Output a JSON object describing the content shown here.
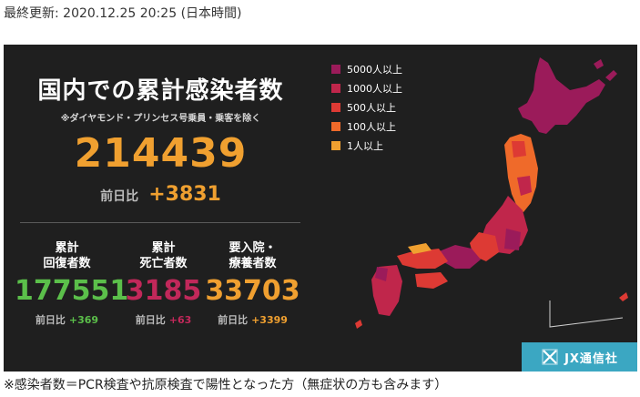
{
  "updated": "最終更新: 2020.12.25 20:25 (日本時間)",
  "title": "国内での累計感染者数",
  "note": "※ダイヤモンド・プリンセス号乗員・乗客を除く",
  "total": "214439",
  "prev_label": "前日比",
  "total_prev": "+3831",
  "stats": [
    {
      "label1": "累計",
      "label2": "回復者数",
      "value": "177551",
      "prev": "+369",
      "color": "#5bbf4a"
    },
    {
      "label1": "累計",
      "label2": "死亡者数",
      "value": "3185",
      "prev": "+63",
      "color": "#c1285a"
    },
    {
      "label1": "要入院・",
      "label2": "療養者数",
      "value": "33703",
      "prev": "+3399",
      "color": "#f0a030"
    }
  ],
  "legend": [
    {
      "label": "5000人以上",
      "color": "#9b1b5a"
    },
    {
      "label": "1000人以上",
      "color": "#c0264b"
    },
    {
      "label": "500人以上",
      "color": "#dd3a34"
    },
    {
      "label": "100人以上",
      "color": "#ef6a2a"
    },
    {
      "label": "1人以上",
      "color": "#f0a030"
    }
  ],
  "map_icon": "japan-map-icon",
  "brand": {
    "icon": "jx-logo-icon",
    "name": "JX通信社"
  },
  "footnote": "※感染者数＝PCR検査や抗原検査で陽性となった方（無症状の方も含みます）"
}
